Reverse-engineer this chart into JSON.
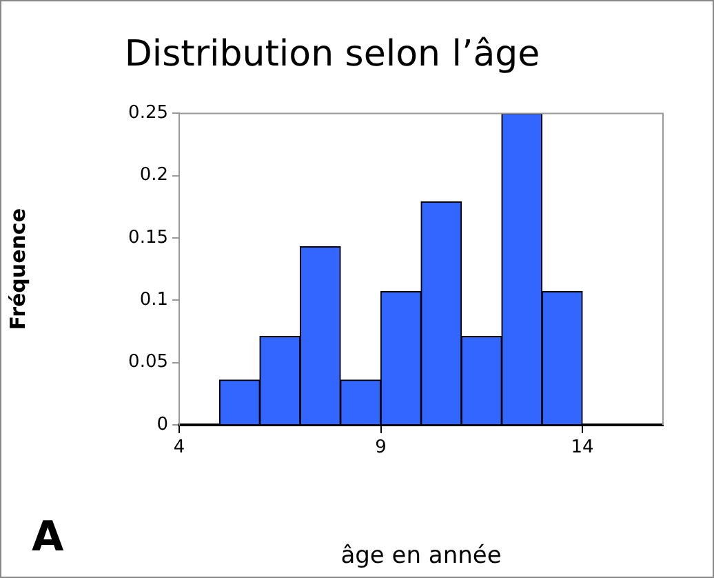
{
  "chart_data": {
    "type": "histogram",
    "title": "Distribution selon l’âge",
    "xlabel": "âge en année",
    "ylabel": "Fréquence",
    "bins": [
      4,
      5,
      6,
      7,
      8,
      9,
      10,
      11,
      12,
      13,
      14,
      15,
      16
    ],
    "values": [
      0,
      0.036,
      0.071,
      0.143,
      0.036,
      0.107,
      0.179,
      0.071,
      0.25,
      0.107,
      0,
      0
    ],
    "color": "#3366ff",
    "xlim": [
      4,
      16
    ],
    "xticks": [
      4,
      9,
      14
    ],
    "ylim": [
      0,
      0.25
    ],
    "yticks": [
      0,
      0.05,
      0.1,
      0.15,
      0.2,
      0.25
    ],
    "grid": false,
    "legend": false,
    "annotations": [
      "A"
    ]
  }
}
